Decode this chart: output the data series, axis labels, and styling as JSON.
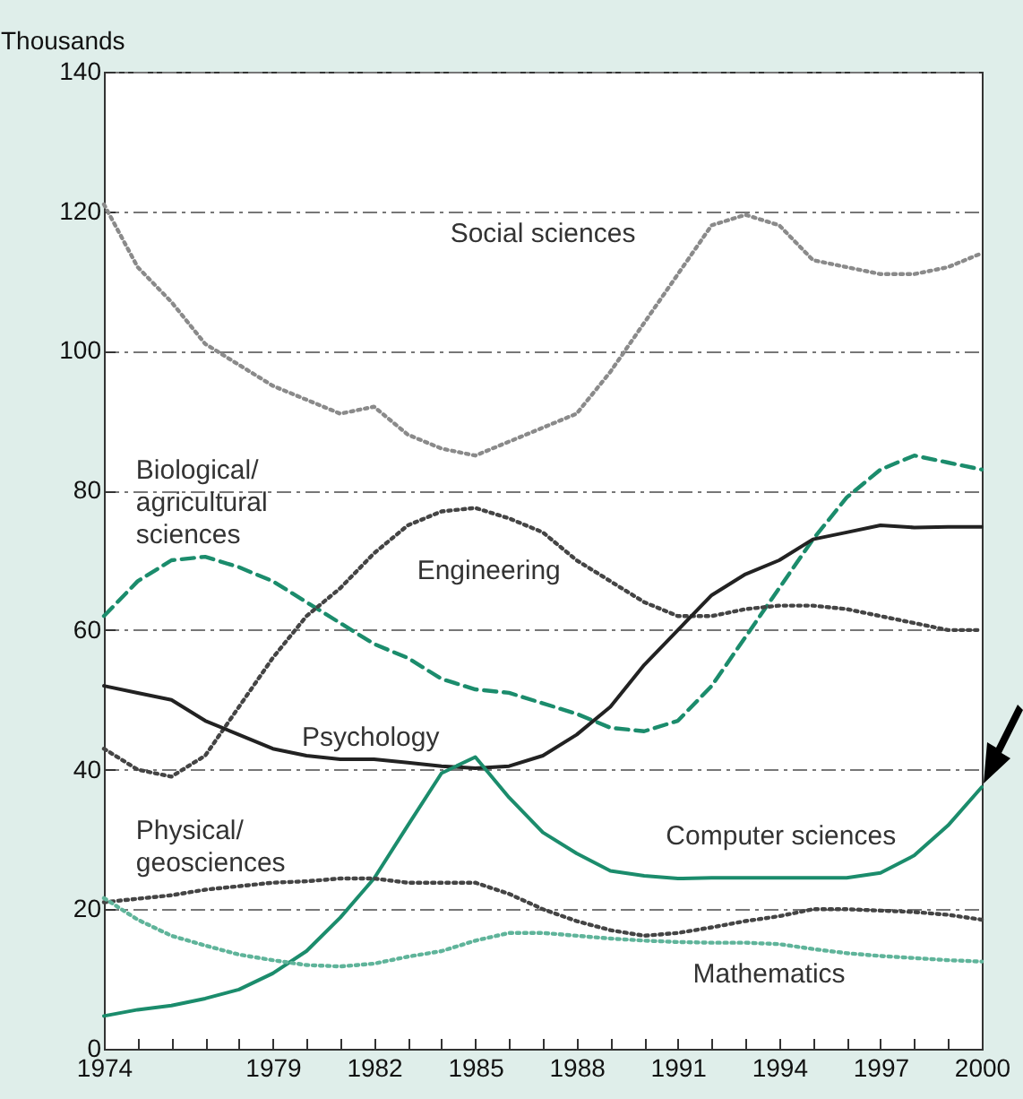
{
  "chart_data": {
    "type": "line",
    "ylabel": "Thousands",
    "x": [
      1974,
      1975,
      1976,
      1977,
      1978,
      1979,
      1980,
      1981,
      1982,
      1983,
      1984,
      1985,
      1986,
      1987,
      1988,
      1989,
      1990,
      1991,
      1992,
      1993,
      1994,
      1995,
      1996,
      1997,
      1998,
      1999,
      2000
    ],
    "series": [
      {
        "name": "Social sciences",
        "color": "#8a8a8a",
        "line_style": "dotted",
        "values": [
          121,
          112,
          107,
          101,
          98,
          95,
          93,
          91,
          92,
          88,
          86,
          85,
          87,
          89,
          91,
          97,
          104,
          111,
          118,
          119.5,
          118,
          113,
          112,
          111,
          111,
          112,
          114
        ]
      },
      {
        "name": "Biological/agricultural sciences",
        "color": "#1b8c6c",
        "line_style": "dashed",
        "values": [
          62,
          67,
          70,
          70.5,
          69,
          67,
          64,
          61,
          58,
          56,
          53,
          51.5,
          51,
          49.5,
          48,
          46,
          45.5,
          47,
          52,
          59,
          66,
          73,
          79,
          83,
          85,
          84,
          83
        ]
      },
      {
        "name": "Engineering",
        "color": "#444444",
        "line_style": "dotted",
        "values": [
          43,
          40,
          39,
          42,
          49,
          56,
          62,
          66,
          71,
          75,
          77,
          77.5,
          76,
          74,
          70,
          67,
          64,
          62,
          62,
          63,
          63.5,
          63.5,
          63,
          62,
          61,
          60,
          60
        ]
      },
      {
        "name": "Psychology",
        "color": "#222222",
        "line_style": "solid",
        "values": [
          52,
          51,
          50,
          47,
          45,
          43,
          42,
          41.5,
          41.5,
          41,
          40.5,
          40.2,
          40.5,
          42,
          45,
          49,
          55,
          60,
          65,
          68,
          70,
          73,
          74,
          75,
          74.7,
          74.8,
          74.8
        ]
      },
      {
        "name": "Computer sciences",
        "color": "#1b8c6c",
        "line_style": "solid",
        "values": [
          4.7,
          5.6,
          6.2,
          7.2,
          8.5,
          10.8,
          14,
          18.8,
          24.4,
          32,
          39.5,
          41.8,
          36,
          31,
          28,
          25.5,
          24.8,
          24.4,
          24.5,
          24.5,
          24.5,
          24.5,
          24.5,
          25.2,
          27.7,
          32,
          37.5
        ]
      },
      {
        "name": "Physical/geosciences",
        "color": "#444444",
        "line_style": "dotted",
        "values": [
          21,
          21.5,
          22,
          22.8,
          23.3,
          23.8,
          24,
          24.4,
          24.4,
          23.8,
          23.8,
          23.8,
          22.2,
          20,
          18.3,
          17,
          16.2,
          16.6,
          17.4,
          18.3,
          19,
          20,
          20,
          19.8,
          19.6,
          19.2,
          18.5
        ]
      },
      {
        "name": "Mathematics",
        "color": "#5fb49a",
        "line_style": "dotted",
        "values": [
          21.6,
          18.5,
          16.2,
          14.8,
          13.5,
          12.7,
          12,
          11.8,
          12.2,
          13.2,
          14,
          15.5,
          16.6,
          16.6,
          16.2,
          15.8,
          15.5,
          15.3,
          15.2,
          15.2,
          15,
          14.3,
          13.7,
          13.3,
          13,
          12.7,
          12.5
        ]
      }
    ],
    "xlim": [
      1974,
      2000
    ],
    "xticks": [
      1974,
      {
        "value": 1975,
        "label": null
      },
      {
        "value": 1976,
        "label": null
      },
      {
        "value": 1977,
        "label": null
      },
      {
        "value": 1978,
        "label": null
      },
      1979,
      {
        "value": 1980,
        "label": null
      },
      {
        "value": 1981,
        "label": null
      },
      1982,
      {
        "value": 1983,
        "label": null
      },
      {
        "value": 1984,
        "label": null
      },
      1985,
      {
        "value": 1986,
        "label": null
      },
      {
        "value": 1987,
        "label": null
      },
      1988,
      {
        "value": 1989,
        "label": null
      },
      {
        "value": 1990,
        "label": null
      },
      1991,
      {
        "value": 1992,
        "label": null
      },
      {
        "value": 1993,
        "label": null
      },
      1994,
      {
        "value": 1995,
        "label": null
      },
      {
        "value": 1996,
        "label": null
      },
      1997,
      {
        "value": 1998,
        "label": null
      },
      {
        "value": 1999,
        "label": null
      },
      2000
    ],
    "ylim": [
      0,
      140
    ],
    "yticks": [
      0,
      20,
      40,
      60,
      80,
      100,
      120,
      140
    ],
    "grid": "y",
    "marker": "none"
  }
}
